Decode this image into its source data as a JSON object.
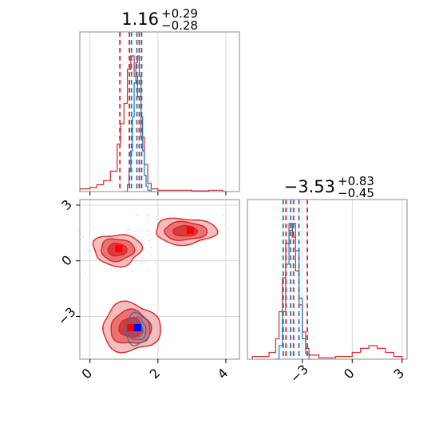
{
  "colors": {
    "red": "#d62728",
    "red_fill": "#f4a6a6",
    "red_fill_dark": "#e55a5a",
    "blue": "#1f77b4",
    "marker_red": "#ff0000",
    "marker_blue": "#0000ff",
    "grid": "#cccccc",
    "frame": "#888888"
  },
  "chart_data": [
    {
      "type": "histogram",
      "panel": "top-left",
      "title_value": "1.16",
      "title_plus": "+0.29",
      "title_minus": "−0.28",
      "xlim": [
        -0.3,
        4.4
      ],
      "xticks": [
        0,
        2,
        4
      ],
      "grid": true,
      "series": [
        {
          "color": "red",
          "quantiles": [
            0.88,
            1.16,
            1.45
          ],
          "bins": [
            [
              -0.3,
              0.02
            ],
            [
              0.0,
              0.03
            ],
            [
              0.2,
              0.05
            ],
            [
              0.4,
              0.08
            ],
            [
              0.6,
              0.15
            ],
            [
              0.8,
              0.35
            ],
            [
              0.9,
              0.5
            ],
            [
              1.0,
              0.65
            ],
            [
              1.1,
              0.9
            ],
            [
              1.2,
              1.0
            ],
            [
              1.3,
              0.85
            ],
            [
              1.4,
              0.7
            ],
            [
              1.5,
              0.4
            ],
            [
              1.6,
              0.2
            ],
            [
              1.7,
              0.06
            ],
            [
              1.8,
              0.02
            ],
            [
              2.0,
              0.01
            ],
            [
              2.5,
              0.01
            ],
            [
              3.0,
              0.005
            ],
            [
              3.5,
              0.01
            ],
            [
              3.9,
              0.0
            ]
          ]
        },
        {
          "color": "blue",
          "quantiles": [
            1.22,
            1.38,
            1.52
          ],
          "bins": [
            [
              1.0,
              0.0
            ],
            [
              1.1,
              0.05
            ],
            [
              1.15,
              0.15
            ],
            [
              1.2,
              0.3
            ],
            [
              1.25,
              0.55
            ],
            [
              1.3,
              0.8
            ],
            [
              1.35,
              0.95
            ],
            [
              1.4,
              1.0
            ],
            [
              1.45,
              0.85
            ],
            [
              1.5,
              0.55
            ],
            [
              1.55,
              0.3
            ],
            [
              1.6,
              0.12
            ],
            [
              1.65,
              0.04
            ],
            [
              1.7,
              0.01
            ],
            [
              1.8,
              0.0
            ]
          ]
        }
      ]
    },
    {
      "type": "histogram",
      "panel": "bottom-right",
      "title_value": "−3.53",
      "title_plus": "+0.83",
      "title_minus": "−0.45",
      "xlim": [
        -6.3,
        3.3
      ],
      "xticks": [
        -3,
        0,
        3
      ],
      "grid": true,
      "series": [
        {
          "color": "red",
          "quantiles": [
            -3.98,
            -3.53,
            -2.7
          ],
          "bins": [
            [
              -6.0,
              0.02
            ],
            [
              -5.0,
              0.05
            ],
            [
              -4.6,
              0.15
            ],
            [
              -4.4,
              0.35
            ],
            [
              -4.2,
              0.6
            ],
            [
              -4.0,
              0.85
            ],
            [
              -3.8,
              1.0
            ],
            [
              -3.6,
              0.9
            ],
            [
              -3.4,
              0.65
            ],
            [
              -3.2,
              0.4
            ],
            [
              -3.0,
              0.2
            ],
            [
              -2.8,
              0.08
            ],
            [
              -2.6,
              0.03
            ],
            [
              -2.0,
              0.01
            ],
            [
              -1.0,
              0.02
            ],
            [
              0.0,
              0.05
            ],
            [
              0.5,
              0.08
            ],
            [
              1.0,
              0.1
            ],
            [
              1.5,
              0.08
            ],
            [
              2.0,
              0.05
            ],
            [
              2.5,
              0.02
            ],
            [
              3.0,
              0.0
            ]
          ]
        },
        {
          "color": "blue",
          "quantiles": [
            -4.15,
            -3.7,
            -3.2
          ],
          "bins": [
            [
              -4.6,
              0.0
            ],
            [
              -4.4,
              0.1
            ],
            [
              -4.2,
              0.35
            ],
            [
              -4.0,
              0.7
            ],
            [
              -3.8,
              0.95
            ],
            [
              -3.6,
              1.0
            ],
            [
              -3.4,
              0.8
            ],
            [
              -3.2,
              0.45
            ],
            [
              -3.0,
              0.15
            ],
            [
              -2.8,
              0.04
            ],
            [
              -2.6,
              0.0
            ]
          ]
        }
      ]
    },
    {
      "type": "contour",
      "panel": "bottom-left",
      "xlim": [
        -0.3,
        4.4
      ],
      "ylim": [
        -5.3,
        3.3
      ],
      "xticks": [
        0,
        2,
        4
      ],
      "yticks": [
        -3,
        0,
        3
      ],
      "grid": true,
      "red_modes": [
        {
          "cx": 0.8,
          "cy": 0.6,
          "rx": 0.7,
          "ry": 0.85
        },
        {
          "cx": 2.8,
          "cy": 1.6,
          "rx": 0.9,
          "ry": 0.7
        },
        {
          "cx": 1.2,
          "cy": -3.6,
          "rx": 0.85,
          "ry": 1.3
        }
      ],
      "blue_mode": {
        "cx": 1.4,
        "cy": -3.7,
        "rx": 0.35,
        "ry": 0.85
      },
      "red_markers": [
        [
          0.85,
          0.65
        ],
        [
          2.95,
          1.65
        ],
        [
          1.2,
          -3.6
        ]
      ],
      "blue_markers": [
        [
          1.4,
          -3.6
        ]
      ]
    }
  ]
}
